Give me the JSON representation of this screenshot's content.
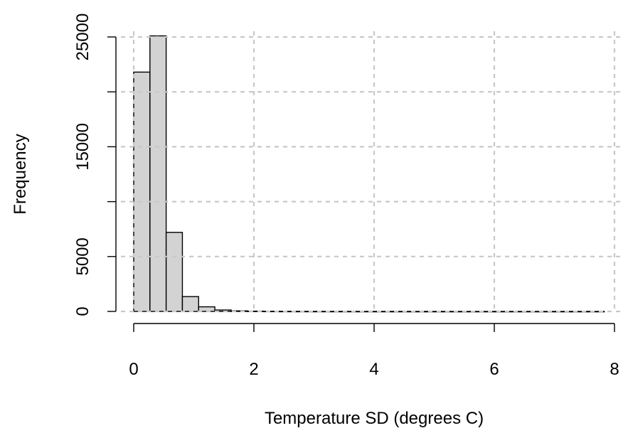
{
  "chart_data": {
    "type": "bar",
    "subtype": "histogram",
    "title": "",
    "xlabel": "Temperature SD (degrees C)",
    "ylabel": "Frequency",
    "xlim": [
      0,
      8
    ],
    "ylim": [
      0,
      25000
    ],
    "x_ticks": [
      0,
      2,
      4,
      6,
      8
    ],
    "y_ticks": [
      0,
      5000,
      15000,
      25000
    ],
    "grid": true,
    "bar_fill": "#d3d3d3",
    "bar_edge": "#000000",
    "grid_color": "#c8c8c8",
    "bins": [
      {
        "x0": 0.0,
        "x1": 0.27,
        "count": 21800
      },
      {
        "x0": 0.27,
        "x1": 0.54,
        "count": 25100
      },
      {
        "x0": 0.54,
        "x1": 0.81,
        "count": 7200
      },
      {
        "x0": 0.81,
        "x1": 1.08,
        "count": 1350
      },
      {
        "x0": 1.08,
        "x1": 1.35,
        "count": 420
      },
      {
        "x0": 1.35,
        "x1": 1.62,
        "count": 130
      },
      {
        "x0": 1.62,
        "x1": 1.89,
        "count": 50
      },
      {
        "x0": 1.89,
        "x1": 2.16,
        "count": 25
      },
      {
        "x0": 2.16,
        "x1": 2.43,
        "count": 15
      },
      {
        "x0": 2.43,
        "x1": 2.7,
        "count": 10
      },
      {
        "x0": 2.7,
        "x1": 2.97,
        "count": 8
      },
      {
        "x0": 2.97,
        "x1": 3.24,
        "count": 6
      },
      {
        "x0": 3.24,
        "x1": 3.51,
        "count": 5
      },
      {
        "x0": 3.51,
        "x1": 3.78,
        "count": 4
      },
      {
        "x0": 3.78,
        "x1": 4.05,
        "count": 3
      },
      {
        "x0": 4.05,
        "x1": 4.32,
        "count": 3
      },
      {
        "x0": 4.32,
        "x1": 4.59,
        "count": 2
      },
      {
        "x0": 4.59,
        "x1": 4.86,
        "count": 2
      },
      {
        "x0": 4.86,
        "x1": 5.13,
        "count": 2
      },
      {
        "x0": 5.13,
        "x1": 5.4,
        "count": 1
      },
      {
        "x0": 5.4,
        "x1": 5.67,
        "count": 1
      },
      {
        "x0": 5.67,
        "x1": 5.94,
        "count": 1
      },
      {
        "x0": 5.94,
        "x1": 6.21,
        "count": 1
      },
      {
        "x0": 6.21,
        "x1": 6.48,
        "count": 1
      },
      {
        "x0": 6.48,
        "x1": 6.75,
        "count": 1
      },
      {
        "x0": 6.75,
        "x1": 7.02,
        "count": 1
      },
      {
        "x0": 7.02,
        "x1": 7.29,
        "count": 1
      },
      {
        "x0": 7.29,
        "x1": 7.56,
        "count": 1
      },
      {
        "x0": 7.56,
        "x1": 7.83,
        "count": 1
      }
    ]
  }
}
